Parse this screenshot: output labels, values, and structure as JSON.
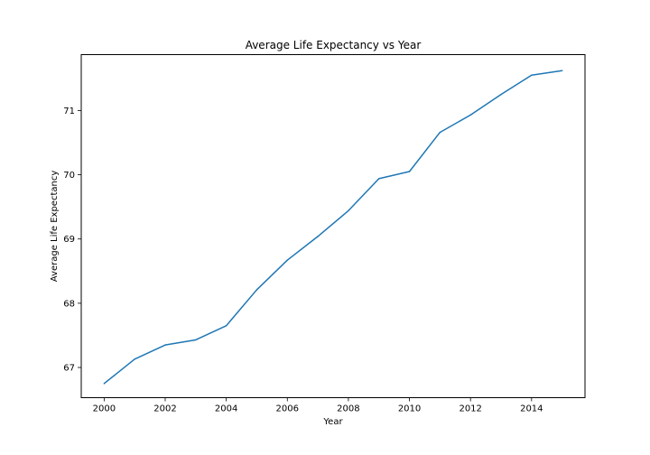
{
  "chart_data": {
    "type": "line",
    "title": "Average Life Expectancy vs Year",
    "xlabel": "Year",
    "ylabel": "Average Life Expectancy",
    "x": [
      2000,
      2001,
      2002,
      2003,
      2004,
      2005,
      2006,
      2007,
      2008,
      2009,
      2010,
      2011,
      2012,
      2013,
      2014,
      2015
    ],
    "series": [
      {
        "values": [
          66.75,
          67.13,
          67.35,
          67.43,
          67.65,
          68.21,
          68.67,
          69.04,
          69.44,
          69.94,
          70.05,
          70.66,
          70.93,
          71.25,
          71.55,
          71.62
        ],
        "color": "#1f77b4"
      }
    ],
    "xlim": [
      1999.25,
      2015.75
    ],
    "ylim": [
      66.53,
      71.87
    ],
    "xticks": [
      "2000",
      "2002",
      "2004",
      "2006",
      "2008",
      "2010",
      "2012",
      "2014"
    ],
    "yticks": [
      "67",
      "68",
      "69",
      "70",
      "71"
    ],
    "grid": false
  }
}
